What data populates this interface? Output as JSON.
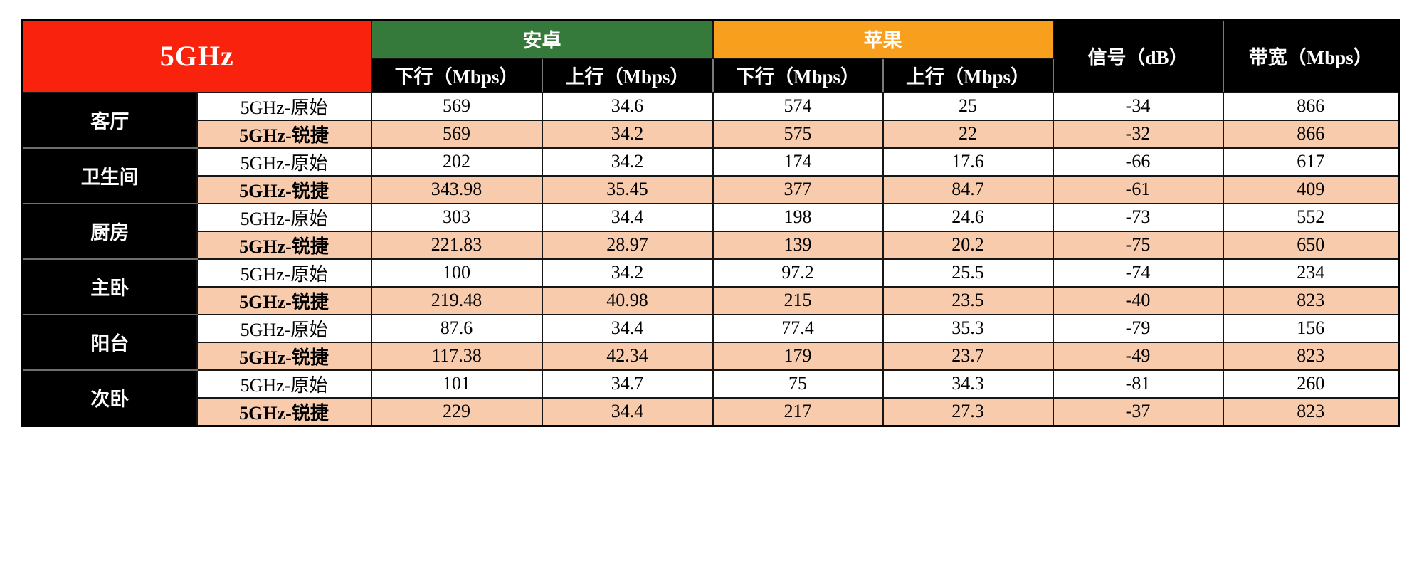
{
  "table": {
    "freq_label": "5GHz",
    "groups": {
      "android": "安卓",
      "apple": "苹果"
    },
    "sub_headers": {
      "android_down": "下行（Mbps）",
      "android_up": "上行（Mbps）",
      "apple_down": "下行（Mbps）",
      "apple_up": "上行（Mbps）"
    },
    "signal_header": "信号（dB）",
    "bandwidth_header": "带宽（Mbps）",
    "value_columns": [
      "android_downlink",
      "android_uplink",
      "apple_downlink",
      "apple_uplink",
      "signal_db",
      "bandwidth_mbps"
    ],
    "rooms": [
      {
        "name": "客厅",
        "rows": [
          {
            "type": "5GHz-原始",
            "values": [
              "569",
              "34.6",
              "574",
              "25",
              "-34",
              "866"
            ]
          },
          {
            "type": "5GHz-锐捷",
            "values": [
              "569",
              "34.2",
              "575",
              "22",
              "-32",
              "866"
            ]
          }
        ]
      },
      {
        "name": "卫生间",
        "rows": [
          {
            "type": "5GHz-原始",
            "values": [
              "202",
              "34.2",
              "174",
              "17.6",
              "-66",
              "617"
            ]
          },
          {
            "type": "5GHz-锐捷",
            "values": [
              "343.98",
              "35.45",
              "377",
              "84.7",
              "-61",
              "409"
            ]
          }
        ]
      },
      {
        "name": "厨房",
        "rows": [
          {
            "type": "5GHz-原始",
            "values": [
              "303",
              "34.4",
              "198",
              "24.6",
              "-73",
              "552"
            ]
          },
          {
            "type": "5GHz-锐捷",
            "values": [
              "221.83",
              "28.97",
              "139",
              "20.2",
              "-75",
              "650"
            ]
          }
        ]
      },
      {
        "name": "主卧",
        "rows": [
          {
            "type": "5GHz-原始",
            "values": [
              "100",
              "34.2",
              "97.2",
              "25.5",
              "-74",
              "234"
            ]
          },
          {
            "type": "5GHz-锐捷",
            "values": [
              "219.48",
              "40.98",
              "215",
              "23.5",
              "-40",
              "823"
            ]
          }
        ]
      },
      {
        "name": "阳台",
        "rows": [
          {
            "type": "5GHz-原始",
            "values": [
              "87.6",
              "34.4",
              "77.4",
              "35.3",
              "-79",
              "156"
            ]
          },
          {
            "type": "5GHz-锐捷",
            "values": [
              "117.38",
              "42.34",
              "179",
              "23.7",
              "-49",
              "823"
            ]
          }
        ]
      },
      {
        "name": "次卧",
        "rows": [
          {
            "type": "5GHz-原始",
            "values": [
              "101",
              "34.7",
              "75",
              "34.3",
              "-81",
              "260"
            ]
          },
          {
            "type": "5GHz-锐捷",
            "values": [
              "229",
              "34.4",
              "217",
              "27.3",
              "-37",
              "823"
            ]
          }
        ]
      }
    ]
  },
  "colors": {
    "freq_red": "#F8220D",
    "android_green": "#35793B",
    "apple_orange": "#F8A01D",
    "header_black": "#000000",
    "ruijie_row_peach": "#F8CBAD",
    "original_row_white": "#FFFFFF",
    "header_text_white": "#FFFFFF",
    "data_text_black": "#000000"
  }
}
